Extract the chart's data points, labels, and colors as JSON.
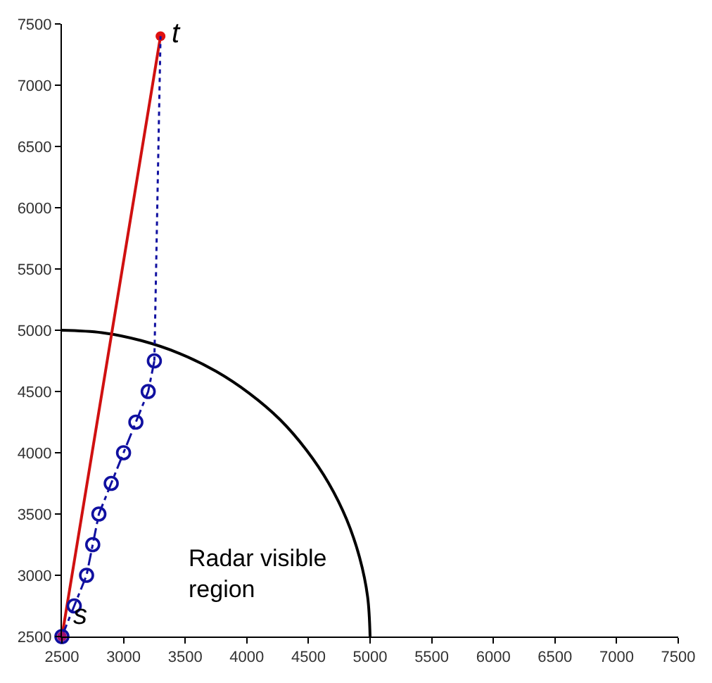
{
  "chart_data": {
    "type": "line",
    "xlim": [
      2500,
      7500
    ],
    "ylim": [
      2500,
      7500
    ],
    "xticks": [
      2500,
      3000,
      3500,
      4000,
      4500,
      5000,
      5500,
      6000,
      6500,
      7000,
      7500
    ],
    "yticks": [
      2500,
      3000,
      3500,
      4000,
      4500,
      5000,
      5500,
      6000,
      6500,
      7000,
      7500
    ],
    "series": [
      {
        "color": "#000000",
        "line_style": "solid",
        "marker": "none",
        "x": [
          5000,
          4980,
          4915,
          4810,
          4665,
          4485,
          4270,
          4020,
          3750,
          3455,
          3145,
          2825,
          2500
        ],
        "values": [
          2500,
          2825,
          3145,
          3455,
          3750,
          4020,
          4270,
          4485,
          4665,
          4810,
          4915,
          4980,
          5000
        ]
      },
      {
        "color": "#d01010",
        "line_style": "solid",
        "marker": "none",
        "x": [
          2500,
          3300
        ],
        "values": [
          2500,
          7400
        ]
      },
      {
        "type": "scatter",
        "color": "#e01010",
        "marker": "circle",
        "x": [
          3300
        ],
        "values": [
          7400
        ]
      },
      {
        "color": "#1010a0",
        "line_style": "dashdot",
        "marker": "open circle",
        "x": [
          2500,
          2600,
          2700,
          2750,
          2800,
          2900,
          3000,
          3100,
          3200,
          3250
        ],
        "values": [
          2500,
          2750,
          3000,
          3250,
          3500,
          3750,
          4000,
          4250,
          4500,
          4750
        ]
      },
      {
        "color": "#1010a0",
        "line_style": "dotted",
        "marker": "none",
        "x": [
          3250,
          3300
        ],
        "values": [
          4750,
          7400
        ]
      },
      {
        "type": "scatter",
        "color": "#a01070",
        "marker": "circle",
        "x": [
          2500
        ],
        "values": [
          2500
        ]
      }
    ],
    "annotations": [
      {
        "text": "t",
        "x": 3300,
        "y": 7400
      },
      {
        "text": "s",
        "x": 2500,
        "y": 2500
      },
      "Radar visible region"
    ]
  }
}
